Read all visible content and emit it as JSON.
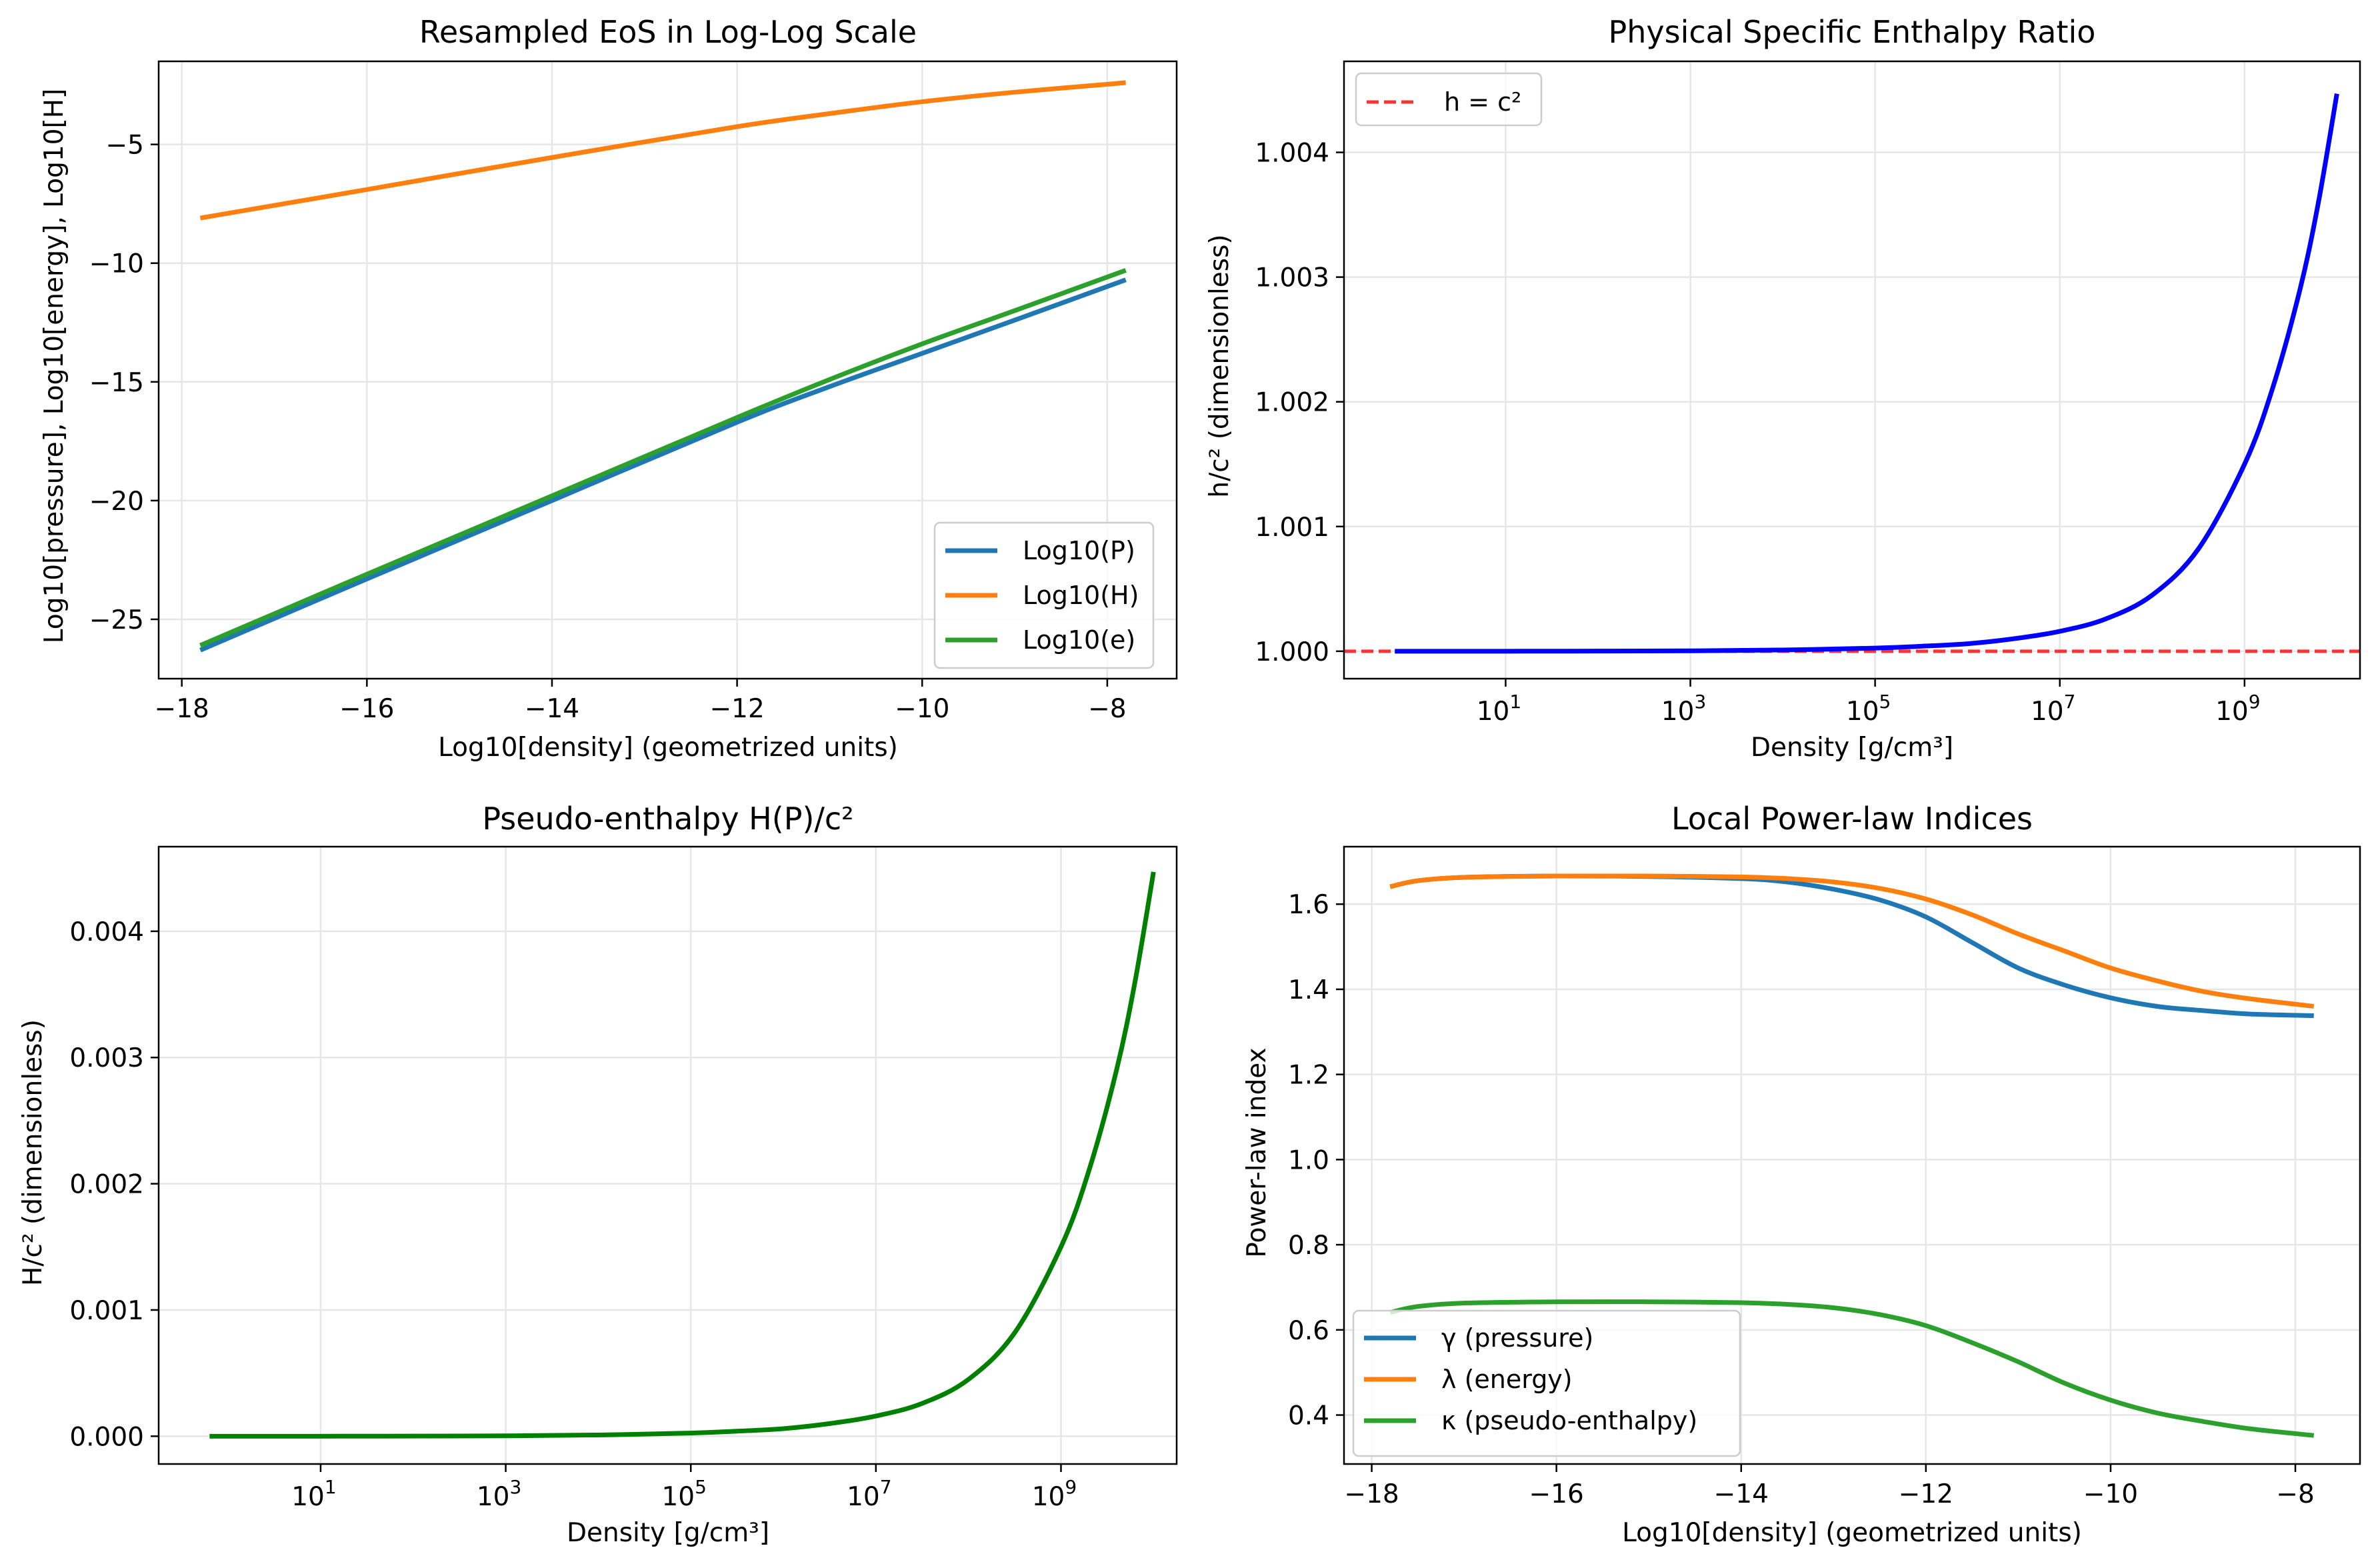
{
  "colors": {
    "tab_blue": "#1f77b4",
    "tab_orange": "#ff7f0e",
    "tab_green": "#2ca02c",
    "blue": "#0000ff",
    "green": "#008000",
    "red_dashed": "#ff3333",
    "grid": "#e6e6e6"
  },
  "chart_data": [
    {
      "type": "line",
      "title": "Resampled EoS in Log-Log Scale",
      "xlabel": "Log10[density] (geometrized units)",
      "ylabel": "Log10[pressure], Log10[energy], Log10[H]",
      "xlim": [
        -18.25,
        -7.25
      ],
      "ylim": [
        -27.5,
        -1.5
      ],
      "xticks": [
        -18,
        -16,
        -14,
        -12,
        -10,
        -8
      ],
      "xtick_labels": [
        "−18",
        "−16",
        "−14",
        "−12",
        "−10",
        "−8"
      ],
      "yticks": [
        -25,
        -20,
        -15,
        -10,
        -5
      ],
      "ytick_labels": [
        "−25",
        "−20",
        "−15",
        "−10",
        "−5"
      ],
      "grid": true,
      "legend_position": "lower-right",
      "series": [
        {
          "name": "Log10(P)",
          "color": "#1f77b4",
          "x": [
            -17.8,
            -16,
            -14,
            -12,
            -11,
            -10,
            -9,
            -7.8
          ],
          "y": [
            -26.3,
            -23.3,
            -20.0,
            -16.7,
            -15.2,
            -13.8,
            -12.4,
            -10.7
          ]
        },
        {
          "name": "Log10(H)",
          "color": "#ff7f0e",
          "x": [
            -17.8,
            -16,
            -14,
            -12,
            -11,
            -10,
            -9,
            -7.8
          ],
          "y": [
            -8.1,
            -6.9,
            -5.55,
            -4.25,
            -3.7,
            -3.2,
            -2.8,
            -2.4
          ]
        },
        {
          "name": "Log10(e)",
          "color": "#2ca02c",
          "x": [
            -17.8,
            -16,
            -14,
            -12,
            -11,
            -10,
            -9,
            -7.8
          ],
          "y": [
            -26.1,
            -23.1,
            -19.8,
            -16.5,
            -14.9,
            -13.4,
            -12.0,
            -10.3
          ]
        }
      ]
    },
    {
      "type": "line",
      "title": "Physical Specific Enthalpy Ratio",
      "xlabel": "Density [g/cm³]",
      "ylabel": "h/c² (dimensionless)",
      "xscale": "log",
      "xlim_log10": [
        -0.75,
        10.25
      ],
      "ylim": [
        0.99978,
        1.00473
      ],
      "xticks_log10": [
        1,
        3,
        5,
        7,
        9
      ],
      "xtick_bases": [
        "10",
        "10",
        "10",
        "10",
        "10"
      ],
      "xtick_exponents": [
        "1",
        "3",
        "5",
        "7",
        "9"
      ],
      "yticks": [
        1.0,
        1.001,
        1.002,
        1.003,
        1.004
      ],
      "ytick_labels": [
        "1.000",
        "1.001",
        "1.002",
        "1.003",
        "1.004"
      ],
      "grid": true,
      "legend_position": "top-left",
      "reference_line": {
        "name": "h = c²",
        "y": 1.0,
        "color": "#ff3333",
        "style": "dashed"
      },
      "series": [
        {
          "name": "",
          "color": "#0000ff",
          "x_log10": [
            -0.2,
            1,
            2,
            3,
            4,
            5,
            5.5,
            6,
            6.5,
            7,
            7.5,
            8,
            8.5,
            9,
            9.3,
            9.6,
            9.8,
            10.0
          ],
          "y": [
            1.0,
            1.0,
            1.000001,
            1.000003,
            1.00001,
            1.000025,
            1.00004,
            1.00006,
            1.0001,
            1.00016,
            1.00026,
            1.00045,
            1.00082,
            1.0015,
            1.0021,
            1.0029,
            1.0036,
            1.00447
          ]
        }
      ]
    },
    {
      "type": "line",
      "title": "Pseudo-enthalpy H(P)/c²",
      "xlabel": "Density [g/cm³]",
      "ylabel": "H/c² (dimensionless)",
      "xscale": "log",
      "xlim_log10": [
        -0.75,
        10.25
      ],
      "ylim": [
        -0.00022,
        0.00467
      ],
      "xticks_log10": [
        1,
        3,
        5,
        7,
        9
      ],
      "xtick_bases": [
        "10",
        "10",
        "10",
        "10",
        "10"
      ],
      "xtick_exponents": [
        "1",
        "3",
        "5",
        "7",
        "9"
      ],
      "yticks": [
        0.0,
        0.001,
        0.002,
        0.003,
        0.004
      ],
      "ytick_labels": [
        "0.000",
        "0.001",
        "0.002",
        "0.003",
        "0.004"
      ],
      "grid": true,
      "series": [
        {
          "name": "",
          "color": "#008000",
          "x_log10": [
            -0.2,
            1,
            2,
            3,
            4,
            5,
            5.5,
            6,
            6.5,
            7,
            7.5,
            8,
            8.5,
            9,
            9.3,
            9.6,
            9.8,
            10.0
          ],
          "y": [
            0.0,
            0.0,
            1e-06,
            3e-06,
            1e-05,
            2.5e-05,
            4e-05,
            6e-05,
            0.0001,
            0.00016,
            0.00026,
            0.00045,
            0.00082,
            0.0015,
            0.0021,
            0.0029,
            0.0036,
            0.00447
          ]
        }
      ]
    },
    {
      "type": "line",
      "title": "Local Power-law Indices",
      "xlabel": "Log10[density] (geometrized units)",
      "ylabel": "Power-law index",
      "xlim": [
        -18.3,
        -7.3
      ],
      "ylim": [
        0.285,
        1.735
      ],
      "xticks": [
        -18,
        -16,
        -14,
        -12,
        -10,
        -8
      ],
      "xtick_labels": [
        "−18",
        "−16",
        "−14",
        "−12",
        "−10",
        "−8"
      ],
      "yticks": [
        0.4,
        0.6,
        0.8,
        1.0,
        1.2,
        1.4,
        1.6
      ],
      "ytick_labels": [
        "0.4",
        "0.6",
        "0.8",
        "1.0",
        "1.2",
        "1.4",
        "1.6"
      ],
      "grid": true,
      "legend_position": "lower-left",
      "series": [
        {
          "name": "γ (pressure)",
          "color": "#1f77b4",
          "x": [
            -17.8,
            -17.5,
            -17,
            -16,
            -15,
            -14,
            -13.5,
            -13,
            -12.5,
            -12,
            -11.5,
            -11,
            -10.5,
            -10,
            -9.5,
            -9,
            -8.5,
            -7.8
          ],
          "y": [
            1.641,
            1.655,
            1.663,
            1.666,
            1.665,
            1.66,
            1.652,
            1.635,
            1.61,
            1.57,
            1.51,
            1.45,
            1.41,
            1.38,
            1.36,
            1.35,
            1.342,
            1.338
          ]
        },
        {
          "name": "λ (energy)",
          "color": "#ff7f0e",
          "x": [
            -17.8,
            -17.5,
            -17,
            -16,
            -15,
            -14,
            -13.5,
            -13,
            -12.5,
            -12,
            -11.5,
            -11,
            -10.5,
            -10,
            -9.5,
            -9,
            -8.5,
            -7.8
          ],
          "y": [
            1.641,
            1.655,
            1.663,
            1.666,
            1.666,
            1.664,
            1.66,
            1.652,
            1.637,
            1.612,
            1.575,
            1.53,
            1.49,
            1.45,
            1.42,
            1.395,
            1.378,
            1.36
          ]
        },
        {
          "name": "κ (pseudo-enthalpy)",
          "color": "#2ca02c",
          "x": [
            -17.8,
            -17.5,
            -17,
            -16,
            -15,
            -14,
            -13.5,
            -13,
            -12.5,
            -12,
            -11.5,
            -11,
            -10.5,
            -10,
            -9.5,
            -9,
            -8.5,
            -7.8
          ],
          "y": [
            0.641,
            0.655,
            0.663,
            0.666,
            0.666,
            0.664,
            0.66,
            0.652,
            0.636,
            0.61,
            0.57,
            0.525,
            0.475,
            0.435,
            0.405,
            0.385,
            0.368,
            0.352
          ]
        }
      ]
    }
  ]
}
